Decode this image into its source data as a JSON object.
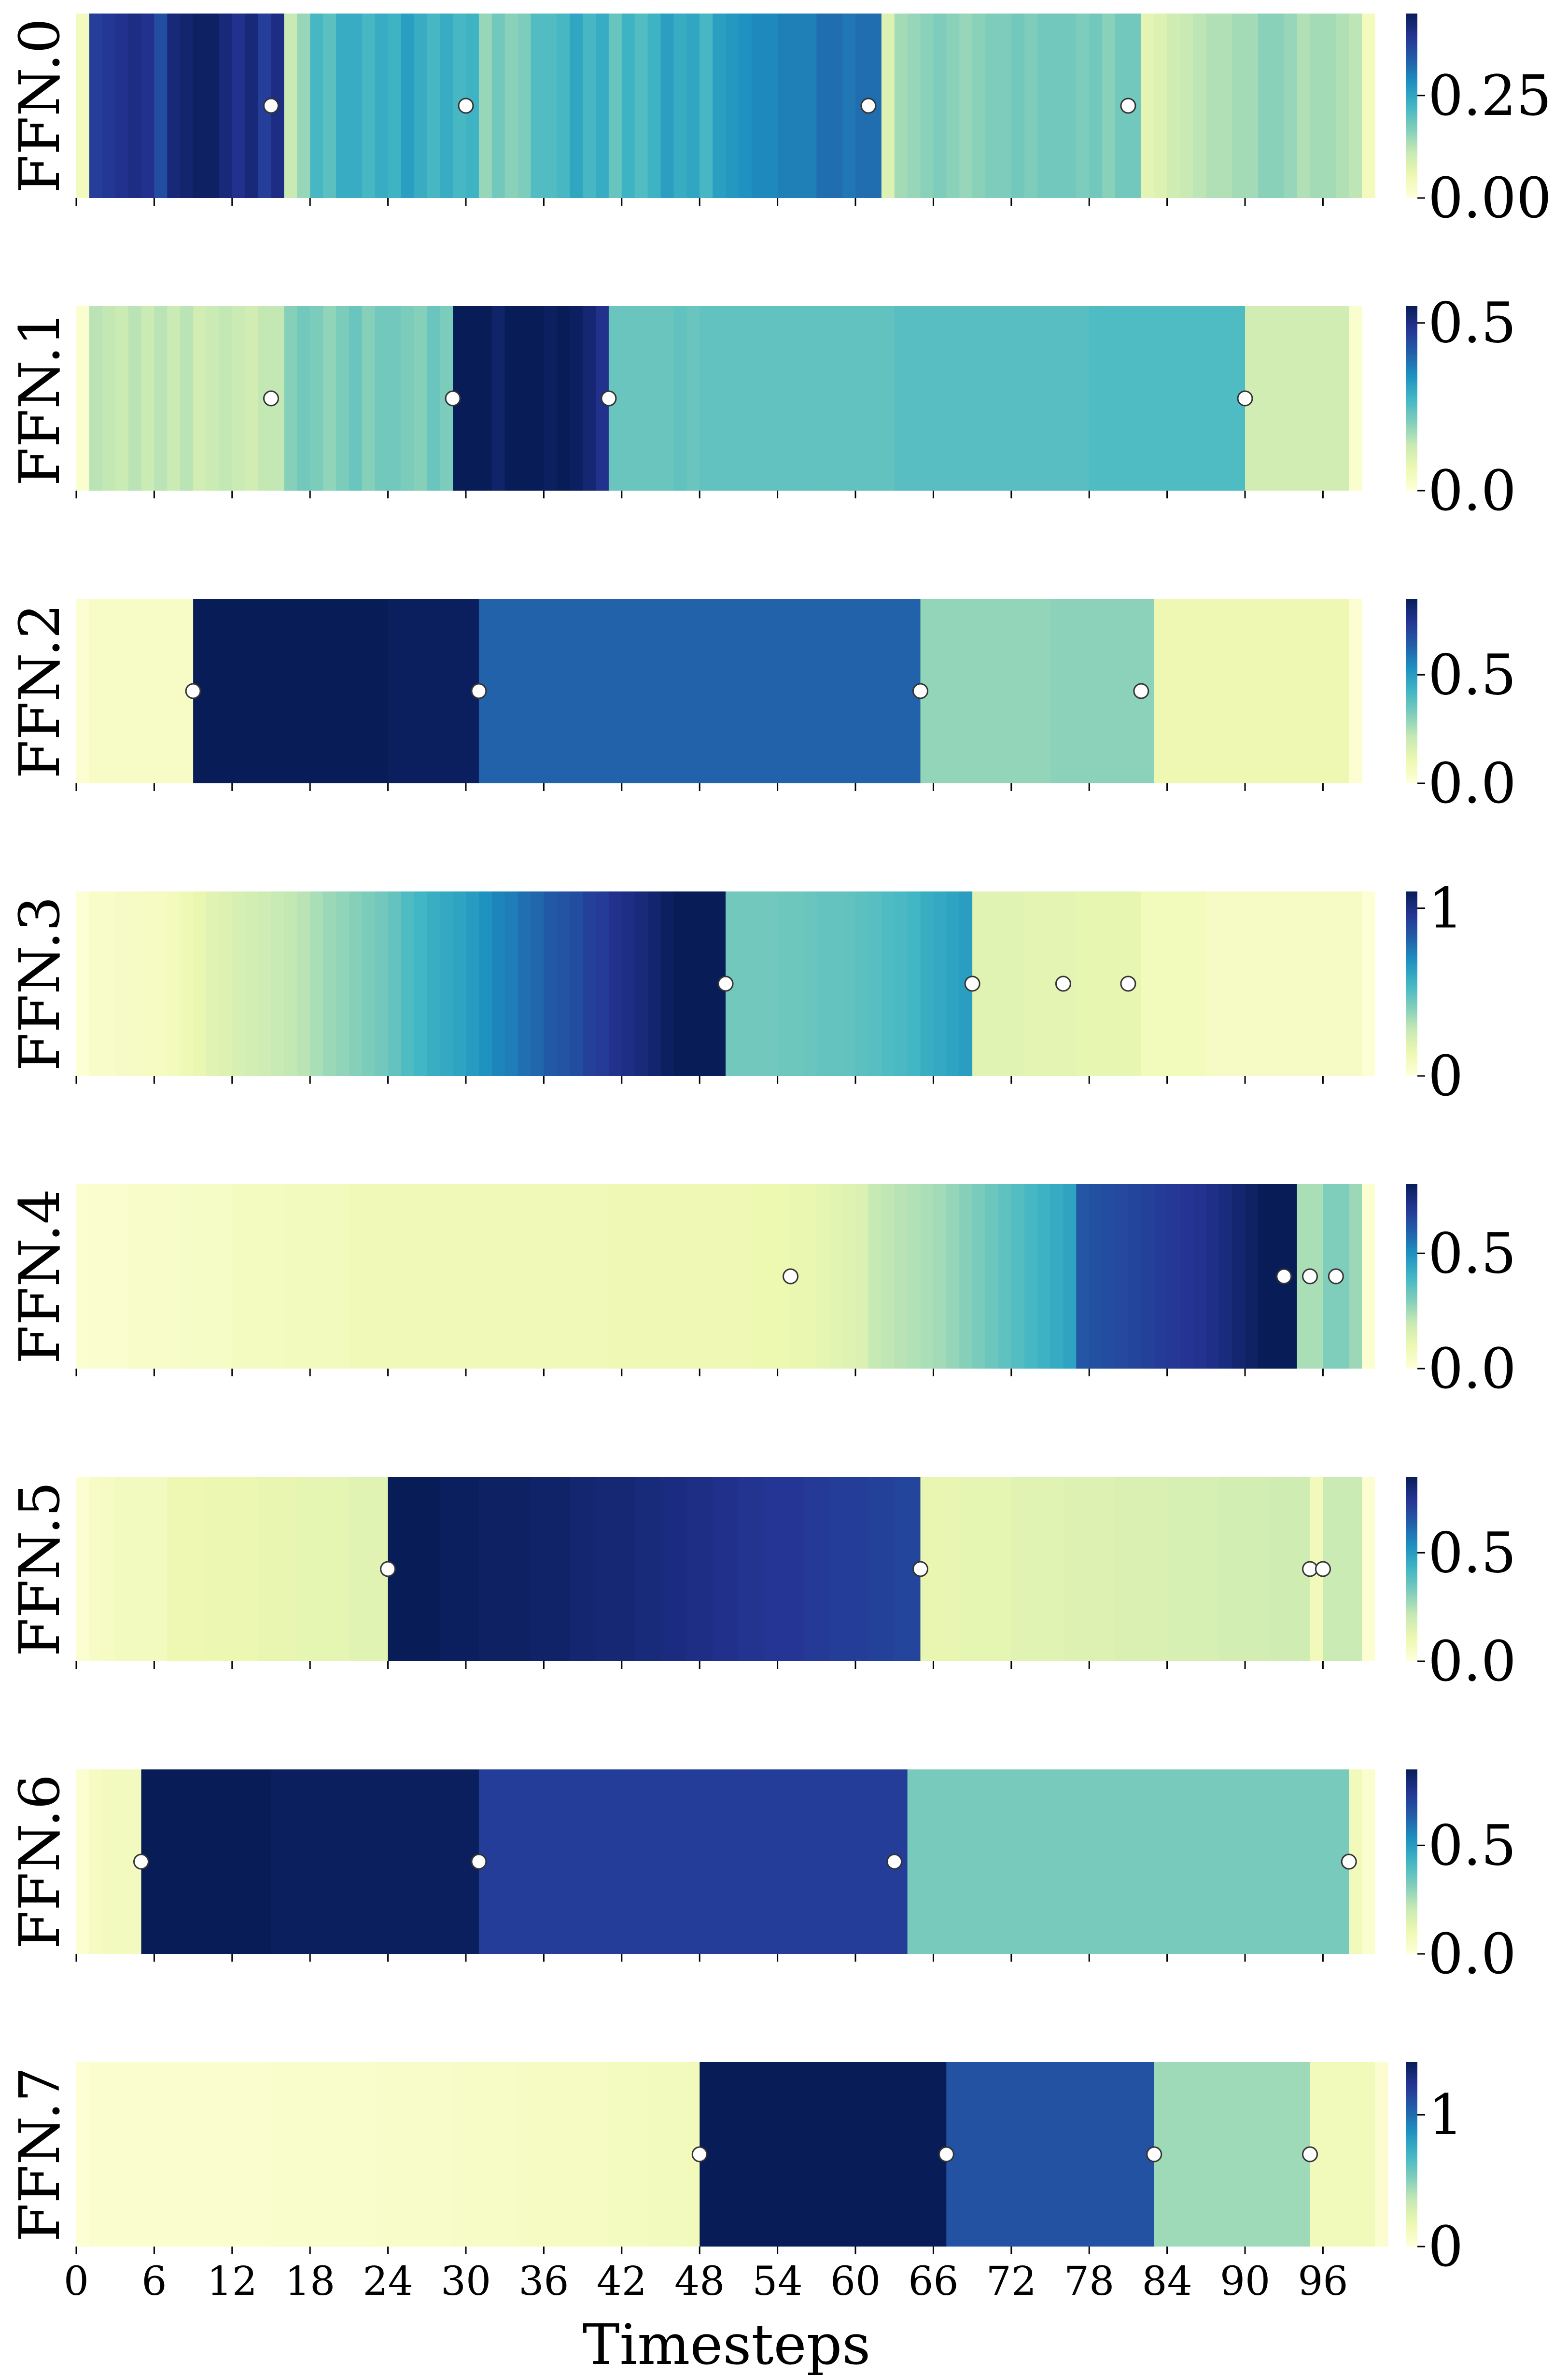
{
  "chart_data": {
    "type": "heatmap",
    "xlabel": "Timesteps",
    "xlim": [
      0,
      100
    ],
    "x_ticks": [
      "0",
      "6",
      "12",
      "18",
      "24",
      "30",
      "36",
      "42",
      "48",
      "54",
      "60",
      "66",
      "72",
      "78",
      "84",
      "90",
      "96"
    ],
    "x_tick_values": [
      0,
      6,
      12,
      18,
      24,
      30,
      36,
      42,
      48,
      54,
      60,
      66,
      72,
      78,
      84,
      90,
      96
    ],
    "colormap": [
      "#ffffd9",
      "#edf8b1",
      "#c7e9b4",
      "#7fcdbb",
      "#41b6c4",
      "#1d91c0",
      "#225ea8",
      "#253494",
      "#081d58"
    ],
    "rows": [
      {
        "label": "FFN.0",
        "vmax": 0.45,
        "cbar_ticks": [
          "0.00",
          "0.25"
        ],
        "cbar_tick_values": [
          0,
          0.25
        ],
        "values": [
          0.04,
          0.38,
          0.39,
          0.4,
          0.41,
          0.4,
          0.36,
          0.42,
          0.43,
          0.44,
          0.44,
          0.42,
          0.4,
          0.42,
          0.38,
          0.41,
          0.11,
          0.15,
          0.22,
          0.2,
          0.24,
          0.24,
          0.22,
          0.24,
          0.23,
          0.26,
          0.24,
          0.22,
          0.24,
          0.22,
          0.23,
          0.15,
          0.18,
          0.16,
          0.17,
          0.21,
          0.21,
          0.22,
          0.25,
          0.22,
          0.24,
          0.19,
          0.23,
          0.21,
          0.23,
          0.26,
          0.24,
          0.25,
          0.22,
          0.26,
          0.27,
          0.28,
          0.29,
          0.29,
          0.3,
          0.3,
          0.3,
          0.32,
          0.32,
          0.31,
          0.32,
          0.32,
          0.08,
          0.14,
          0.15,
          0.16,
          0.17,
          0.16,
          0.15,
          0.16,
          0.17,
          0.17,
          0.18,
          0.17,
          0.18,
          0.18,
          0.18,
          0.17,
          0.18,
          0.16,
          0.18,
          0.18,
          0.07,
          0.08,
          0.1,
          0.11,
          0.12,
          0.13,
          0.13,
          0.14,
          0.14,
          0.16,
          0.16,
          0.15,
          0.13,
          0.14,
          0.14,
          0.13,
          0.12,
          0.04
        ],
        "change_points": [
          15,
          30,
          61,
          81
        ]
      },
      {
        "label": "FFN.1",
        "vmax": 0.55,
        "cbar_ticks": [
          "0.0",
          "0.5"
        ],
        "cbar_tick_values": [
          0,
          0.5
        ],
        "values": [
          0.02,
          0.15,
          0.14,
          0.13,
          0.15,
          0.13,
          0.15,
          0.13,
          0.15,
          0.12,
          0.13,
          0.14,
          0.13,
          0.12,
          0.14,
          0.14,
          0.2,
          0.22,
          0.21,
          0.19,
          0.21,
          0.23,
          0.2,
          0.22,
          0.22,
          0.21,
          0.2,
          0.23,
          0.21,
          0.55,
          0.55,
          0.55,
          0.53,
          0.55,
          0.55,
          0.55,
          0.54,
          0.55,
          0.54,
          0.52,
          0.49,
          0.23,
          0.23,
          0.23,
          0.23,
          0.23,
          0.24,
          0.23,
          0.24,
          0.24,
          0.24,
          0.24,
          0.24,
          0.24,
          0.24,
          0.24,
          0.24,
          0.24,
          0.24,
          0.24,
          0.24,
          0.24,
          0.24,
          0.25,
          0.25,
          0.25,
          0.25,
          0.25,
          0.25,
          0.25,
          0.25,
          0.25,
          0.25,
          0.25,
          0.25,
          0.25,
          0.25,
          0.25,
          0.26,
          0.26,
          0.26,
          0.26,
          0.26,
          0.26,
          0.26,
          0.26,
          0.26,
          0.26,
          0.26,
          0.26,
          0.12,
          0.12,
          0.12,
          0.12,
          0.12,
          0.12,
          0.12,
          0.12,
          0.02
        ],
        "change_points": [
          15,
          29,
          41,
          90
        ]
      },
      {
        "label": "FFN.2",
        "vmax": 0.85,
        "cbar_ticks": [
          "0.0",
          "0.5"
        ],
        "cbar_tick_values": [
          0,
          0.5
        ],
        "values": [
          0.02,
          0.05,
          0.05,
          0.05,
          0.05,
          0.05,
          0.05,
          0.05,
          0.05,
          0.85,
          0.85,
          0.85,
          0.85,
          0.85,
          0.85,
          0.85,
          0.85,
          0.85,
          0.85,
          0.85,
          0.85,
          0.85,
          0.85,
          0.85,
          0.84,
          0.84,
          0.84,
          0.84,
          0.84,
          0.84,
          0.84,
          0.63,
          0.63,
          0.63,
          0.63,
          0.63,
          0.63,
          0.63,
          0.63,
          0.63,
          0.63,
          0.63,
          0.63,
          0.63,
          0.63,
          0.63,
          0.63,
          0.63,
          0.63,
          0.63,
          0.63,
          0.63,
          0.63,
          0.63,
          0.63,
          0.63,
          0.63,
          0.63,
          0.63,
          0.63,
          0.63,
          0.63,
          0.63,
          0.63,
          0.63,
          0.29,
          0.29,
          0.29,
          0.29,
          0.29,
          0.29,
          0.29,
          0.29,
          0.29,
          0.29,
          0.3,
          0.3,
          0.3,
          0.3,
          0.3,
          0.3,
          0.3,
          0.3,
          0.1,
          0.1,
          0.1,
          0.1,
          0.1,
          0.1,
          0.1,
          0.1,
          0.1,
          0.1,
          0.1,
          0.1,
          0.1,
          0.1,
          0.1,
          0.02
        ],
        "change_points": [
          9,
          31,
          65,
          82
        ]
      },
      {
        "label": "FFN.3",
        "vmax": 1.1,
        "cbar_ticks": [
          "0",
          "1"
        ],
        "cbar_tick_values": [
          0,
          1
        ],
        "values": [
          0.02,
          0.06,
          0.06,
          0.07,
          0.07,
          0.08,
          0.08,
          0.1,
          0.12,
          0.15,
          0.18,
          0.2,
          0.22,
          0.23,
          0.25,
          0.27,
          0.28,
          0.3,
          0.33,
          0.36,
          0.38,
          0.4,
          0.42,
          0.44,
          0.47,
          0.52,
          0.55,
          0.58,
          0.6,
          0.62,
          0.65,
          0.68,
          0.72,
          0.74,
          0.78,
          0.8,
          0.84,
          0.86,
          0.88,
          0.92,
          0.94,
          0.98,
          1.0,
          1.02,
          1.05,
          1.08,
          1.1,
          1.1,
          1.1,
          1.1,
          0.44,
          0.44,
          0.44,
          0.44,
          0.45,
          0.45,
          0.46,
          0.47,
          0.47,
          0.48,
          0.49,
          0.5,
          0.52,
          0.53,
          0.55,
          0.58,
          0.6,
          0.62,
          0.64,
          0.18,
          0.18,
          0.18,
          0.18,
          0.17,
          0.17,
          0.17,
          0.17,
          0.16,
          0.16,
          0.16,
          0.16,
          0.16,
          0.1,
          0.1,
          0.1,
          0.1,
          0.1,
          0.07,
          0.07,
          0.07,
          0.07,
          0.07,
          0.07,
          0.07,
          0.07,
          0.07,
          0.07,
          0.07,
          0.07,
          0.02
        ],
        "change_points": [
          50,
          69,
          76,
          81
        ]
      },
      {
        "label": "FFN.4",
        "vmax": 0.8,
        "cbar_ticks": [
          "0.0",
          "0.5"
        ],
        "cbar_tick_values": [
          0,
          0.5
        ],
        "values": [
          0.02,
          0.03,
          0.03,
          0.03,
          0.04,
          0.04,
          0.04,
          0.04,
          0.05,
          0.05,
          0.05,
          0.05,
          0.06,
          0.06,
          0.06,
          0.06,
          0.07,
          0.07,
          0.07,
          0.07,
          0.07,
          0.08,
          0.08,
          0.08,
          0.08,
          0.08,
          0.08,
          0.08,
          0.08,
          0.08,
          0.08,
          0.08,
          0.08,
          0.08,
          0.08,
          0.08,
          0.08,
          0.08,
          0.08,
          0.08,
          0.08,
          0.09,
          0.09,
          0.09,
          0.09,
          0.09,
          0.09,
          0.09,
          0.09,
          0.09,
          0.09,
          0.09,
          0.1,
          0.1,
          0.1,
          0.11,
          0.11,
          0.12,
          0.13,
          0.14,
          0.15,
          0.2,
          0.21,
          0.22,
          0.23,
          0.24,
          0.25,
          0.27,
          0.29,
          0.31,
          0.33,
          0.35,
          0.37,
          0.39,
          0.41,
          0.43,
          0.45,
          0.62,
          0.63,
          0.64,
          0.65,
          0.66,
          0.67,
          0.68,
          0.69,
          0.7,
          0.71,
          0.72,
          0.74,
          0.76,
          0.78,
          0.8,
          0.8,
          0.8,
          0.24,
          0.24,
          0.3,
          0.3,
          0.26,
          0.02
        ],
        "change_points": [
          55,
          93,
          95,
          97
        ]
      },
      {
        "label": "FFN.5",
        "vmax": 0.85,
        "cbar_ticks": [
          "0.0",
          "0.5"
        ],
        "cbar_tick_values": [
          0,
          0.5
        ],
        "values": [
          0.02,
          0.05,
          0.06,
          0.07,
          0.07,
          0.07,
          0.07,
          0.1,
          0.1,
          0.1,
          0.11,
          0.11,
          0.11,
          0.11,
          0.12,
          0.12,
          0.12,
          0.13,
          0.13,
          0.13,
          0.13,
          0.14,
          0.14,
          0.14,
          0.85,
          0.85,
          0.85,
          0.85,
          0.84,
          0.84,
          0.84,
          0.83,
          0.83,
          0.83,
          0.83,
          0.82,
          0.82,
          0.82,
          0.81,
          0.81,
          0.8,
          0.8,
          0.8,
          0.79,
          0.79,
          0.78,
          0.78,
          0.77,
          0.77,
          0.76,
          0.76,
          0.75,
          0.75,
          0.74,
          0.74,
          0.74,
          0.73,
          0.73,
          0.72,
          0.72,
          0.72,
          0.71,
          0.71,
          0.7,
          0.7,
          0.12,
          0.12,
          0.12,
          0.13,
          0.13,
          0.13,
          0.13,
          0.14,
          0.14,
          0.14,
          0.14,
          0.15,
          0.15,
          0.15,
          0.15,
          0.16,
          0.16,
          0.16,
          0.16,
          0.17,
          0.17,
          0.17,
          0.17,
          0.18,
          0.18,
          0.18,
          0.18,
          0.19,
          0.19,
          0.19,
          0.08,
          0.2,
          0.2,
          0.2,
          0.02
        ],
        "change_points": [
          24,
          65,
          95,
          96
        ]
      },
      {
        "label": "FFN.6",
        "vmax": 0.85,
        "cbar_ticks": [
          "0.0",
          "0.5"
        ],
        "cbar_tick_values": [
          0,
          0.5
        ],
        "values": [
          0.02,
          0.06,
          0.07,
          0.07,
          0.07,
          0.85,
          0.85,
          0.85,
          0.85,
          0.85,
          0.85,
          0.85,
          0.85,
          0.85,
          0.85,
          0.84,
          0.84,
          0.84,
          0.84,
          0.84,
          0.84,
          0.84,
          0.84,
          0.84,
          0.84,
          0.84,
          0.84,
          0.84,
          0.84,
          0.84,
          0.84,
          0.72,
          0.72,
          0.72,
          0.72,
          0.72,
          0.72,
          0.72,
          0.72,
          0.72,
          0.72,
          0.72,
          0.72,
          0.72,
          0.72,
          0.72,
          0.72,
          0.72,
          0.72,
          0.72,
          0.72,
          0.72,
          0.72,
          0.72,
          0.72,
          0.72,
          0.72,
          0.72,
          0.72,
          0.72,
          0.72,
          0.72,
          0.72,
          0.72,
          0.33,
          0.33,
          0.33,
          0.33,
          0.33,
          0.33,
          0.33,
          0.33,
          0.33,
          0.33,
          0.33,
          0.33,
          0.33,
          0.33,
          0.33,
          0.33,
          0.33,
          0.33,
          0.33,
          0.33,
          0.33,
          0.33,
          0.33,
          0.33,
          0.33,
          0.33,
          0.33,
          0.33,
          0.33,
          0.33,
          0.33,
          0.33,
          0.33,
          0.33,
          0.08,
          0.03
        ],
        "change_points": [
          5,
          31,
          63,
          98
        ]
      },
      {
        "label": "FFN.7",
        "vmax": 1.4,
        "cbar_ticks": [
          "0",
          "1"
        ],
        "cbar_tick_values": [
          0,
          1
        ],
        "values": [
          0.02,
          0.05,
          0.05,
          0.05,
          0.05,
          0.05,
          0.05,
          0.05,
          0.05,
          0.05,
          0.05,
          0.05,
          0.05,
          0.05,
          0.05,
          0.06,
          0.06,
          0.06,
          0.06,
          0.06,
          0.06,
          0.06,
          0.06,
          0.07,
          0.07,
          0.07,
          0.07,
          0.07,
          0.07,
          0.08,
          0.08,
          0.08,
          0.08,
          0.08,
          0.09,
          0.09,
          0.09,
          0.09,
          0.1,
          0.1,
          0.1,
          0.11,
          0.11,
          0.11,
          0.12,
          0.12,
          0.12,
          0.13,
          1.4,
          1.4,
          1.4,
          1.4,
          1.4,
          1.4,
          1.4,
          1.4,
          1.4,
          1.4,
          1.4,
          1.4,
          1.4,
          1.4,
          1.4,
          1.4,
          1.4,
          1.4,
          1.4,
          1.1,
          1.1,
          1.1,
          1.1,
          1.1,
          1.1,
          1.1,
          1.1,
          1.1,
          1.1,
          1.1,
          1.1,
          1.1,
          1.1,
          1.1,
          1.1,
          0.45,
          0.45,
          0.45,
          0.45,
          0.45,
          0.45,
          0.45,
          0.45,
          0.45,
          0.45,
          0.45,
          0.45,
          0.13,
          0.13,
          0.13,
          0.13,
          0.13,
          0.04
        ],
        "change_points": [
          48,
          67,
          83,
          95
        ]
      }
    ]
  }
}
